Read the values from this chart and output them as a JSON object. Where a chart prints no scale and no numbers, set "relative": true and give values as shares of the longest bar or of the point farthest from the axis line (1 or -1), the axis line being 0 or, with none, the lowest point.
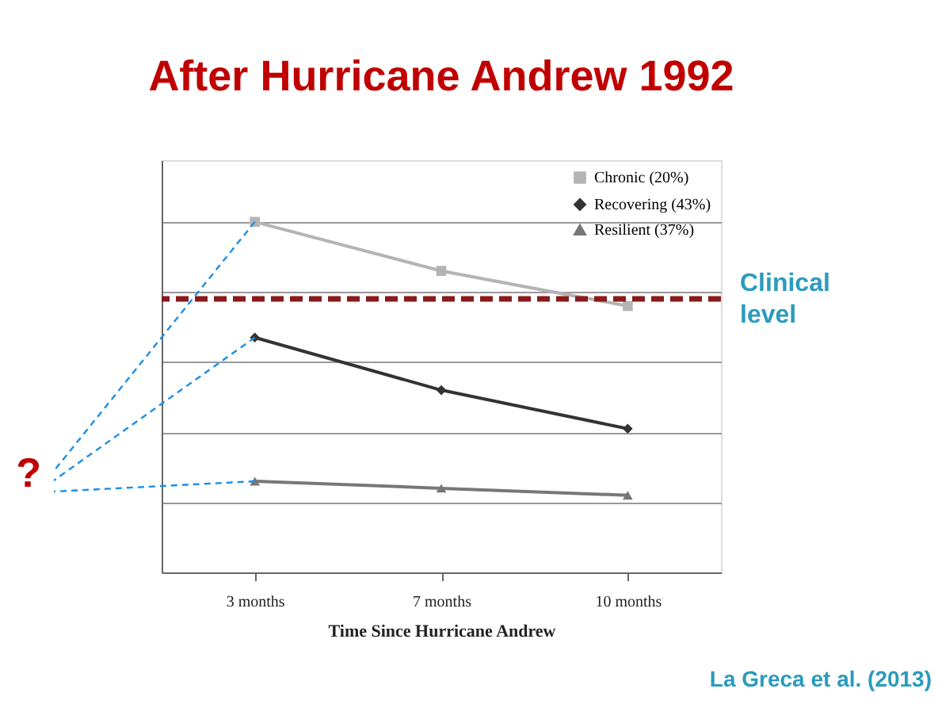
{
  "chart_data": {
    "type": "line",
    "title": "After Hurricane Andrew 1992",
    "xlabel": "Time Since Hurricane Andrew",
    "categories": [
      "3 months",
      "7 months",
      "10 months"
    ],
    "relative": true,
    "grid": "y",
    "legend": "top right",
    "series": [
      {
        "name": "Chronic (20%)",
        "color": "#b4b4b4",
        "marker": "square",
        "values": [
          1,
          0.86,
          0.76
        ]
      },
      {
        "name": "Recovering (43%)",
        "color": "#333333",
        "marker": "diamond",
        "values": [
          0.67,
          0.52,
          0.41
        ]
      },
      {
        "name": "Resilient (37%)",
        "color": "#777777",
        "marker": "triangle",
        "values": [
          0.26,
          0.24,
          0.22
        ]
      }
    ],
    "ref_lines": [
      {
        "axis": "y",
        "value": 0.78,
        "label": "Clinical level",
        "color": "#8b1a1a",
        "line_style": "dashed"
      }
    ],
    "annotations": [
      "?",
      "La Greca et al. (2013)"
    ]
  }
}
